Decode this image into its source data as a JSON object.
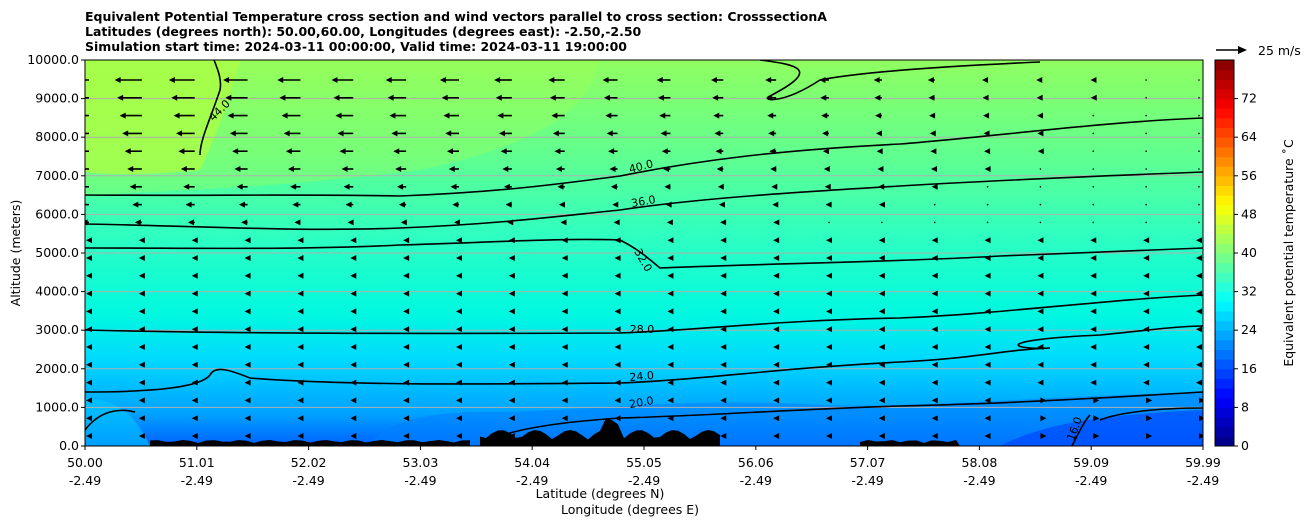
{
  "title_lines": [
    "Equivalent Potential Temperature cross section and wind vectors parallel to cross section: CrosssectionA",
    "Latitudes (degrees north): 50.00,60.00, Longitudes (degrees east): -2.50,-2.50",
    "Simulation start time: 2024-03-11 00:00:00, Valid time: 2024-03-11 19:00:00"
  ],
  "chart_data": {
    "type": "heatmap",
    "subtype": "filled-contour cross section with wind vectors",
    "ylabel": "Altitude (meters)",
    "xlabel_lines": [
      "Latitude (degrees N)",
      "Longitude (degrees E)"
    ],
    "ylim": [
      0,
      10000
    ],
    "y_ticks": [
      "0.0",
      "1000.0",
      "2000.0",
      "3000.0",
      "4000.0",
      "5000.0",
      "6000.0",
      "7000.0",
      "8000.0",
      "9000.0",
      "10000.0"
    ],
    "x_ticks": [
      {
        "lat": "50.00",
        "lon": "-2.49"
      },
      {
        "lat": "51.01",
        "lon": "-2.49"
      },
      {
        "lat": "52.02",
        "lon": "-2.49"
      },
      {
        "lat": "53.03",
        "lon": "-2.49"
      },
      {
        "lat": "54.04",
        "lon": "-2.49"
      },
      {
        "lat": "55.05",
        "lon": "-2.49"
      },
      {
        "lat": "56.06",
        "lon": "-2.49"
      },
      {
        "lat": "57.07",
        "lon": "-2.49"
      },
      {
        "lat": "58.08",
        "lon": "-2.49"
      },
      {
        "lat": "59.09",
        "lon": "-2.49"
      },
      {
        "lat": "59.99",
        "lon": "-2.49"
      }
    ],
    "grid": "horizontal",
    "colorbar": {
      "label": "Equivalent potential temperature $^\\circ$C",
      "label_display": "Equivalent potential temperature ˚C",
      "range": [
        0,
        80
      ],
      "ticks": [
        "0",
        "8",
        "16",
        "24",
        "32",
        "40",
        "48",
        "56",
        "64",
        "72"
      ],
      "colormap": "jet"
    },
    "quiver_key": "25 m/s",
    "contours": [
      {
        "level": 16,
        "label": "16.0"
      },
      {
        "level": 20,
        "label": "20.0"
      },
      {
        "level": 24,
        "label": "24.0"
      },
      {
        "level": 28,
        "label": "28.0"
      },
      {
        "level": 32,
        "label": "32.0"
      },
      {
        "level": 36,
        "label": "36.0"
      },
      {
        "level": 40,
        "label": "40.0"
      },
      {
        "level": 44,
        "label": "44.0"
      }
    ]
  }
}
